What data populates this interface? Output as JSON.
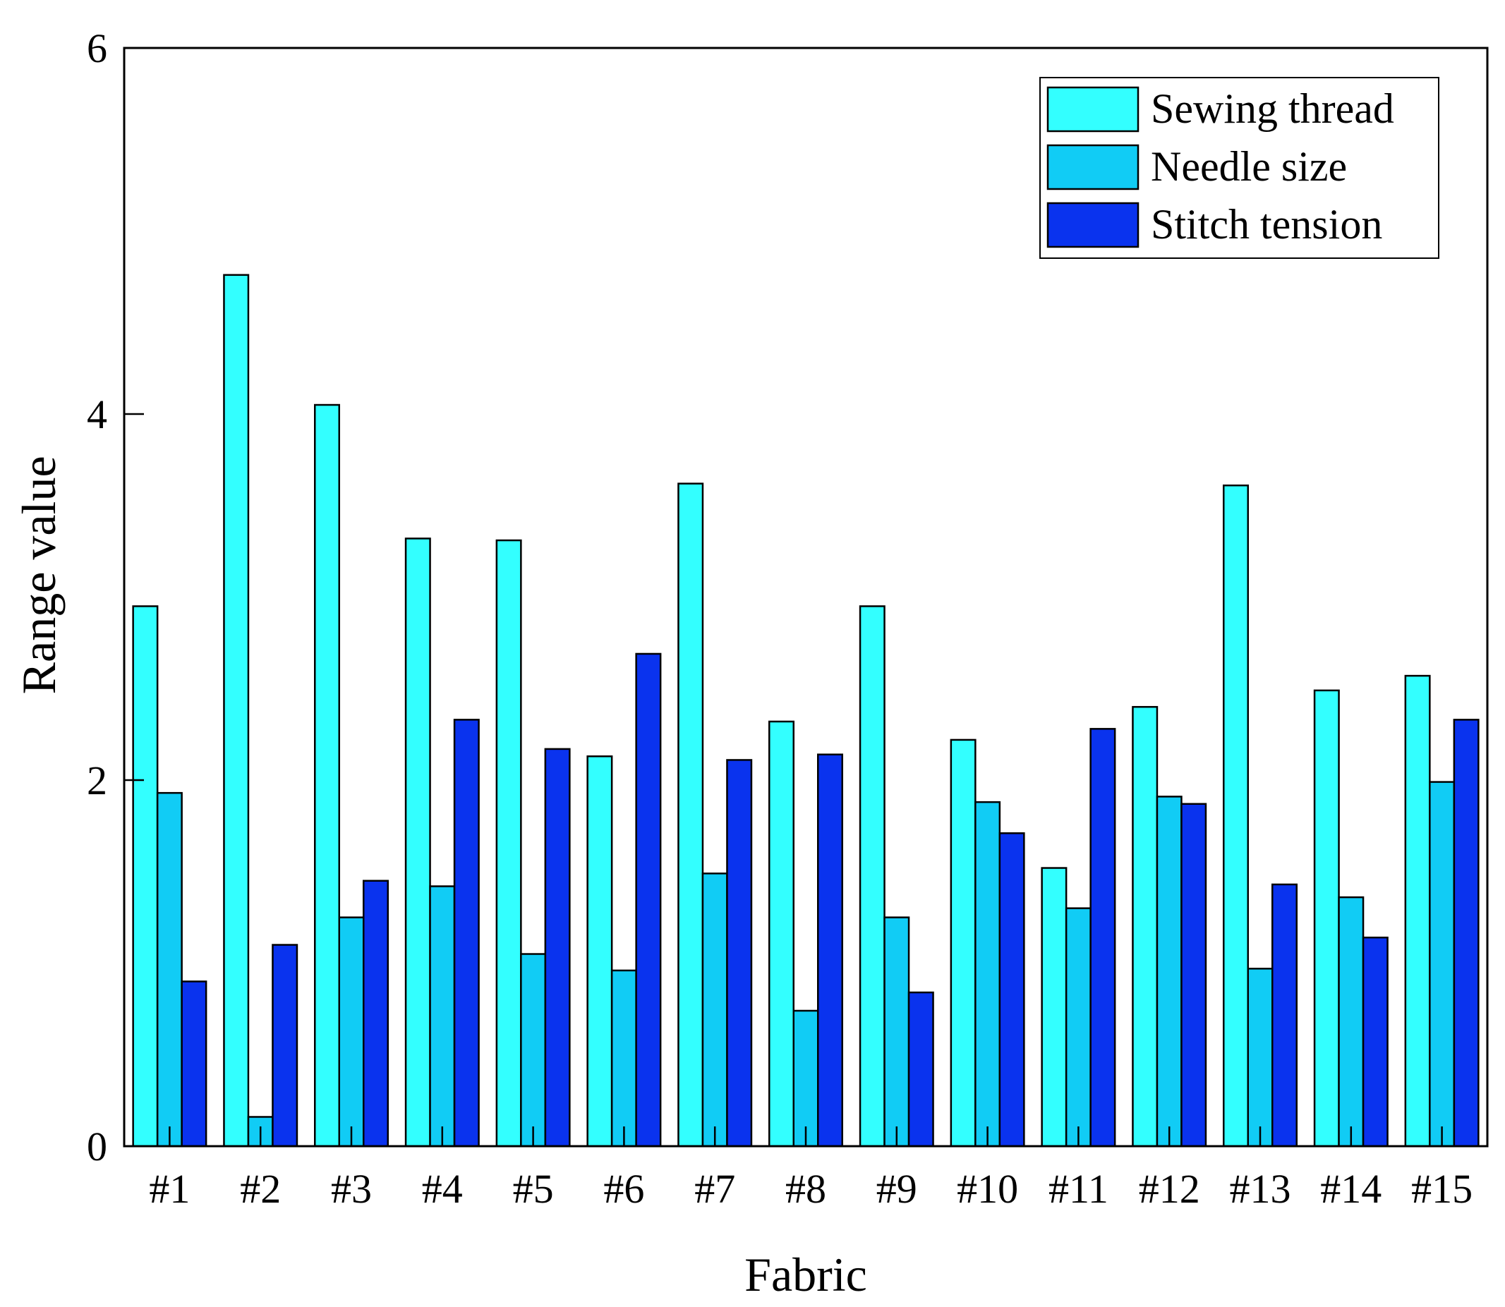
{
  "chart_data": {
    "type": "bar",
    "title": "",
    "xlabel": "Fabric",
    "ylabel": "Range value",
    "ylim": [
      0,
      6
    ],
    "yticks": [
      "0",
      "2",
      "4",
      "6"
    ],
    "categories": [
      "#1",
      "#2",
      "#3",
      "#4",
      "#5",
      "#6",
      "#7",
      "#8",
      "#9",
      "#10",
      "#11",
      "#12",
      "#13",
      "#14",
      "#15"
    ],
    "series": [
      {
        "name": "Sewing thread",
        "color": "#33ffff",
        "values": [
          2.95,
          4.76,
          4.05,
          3.32,
          3.31,
          2.13,
          3.62,
          2.32,
          2.95,
          2.22,
          1.52,
          2.4,
          3.61,
          2.49,
          2.57
        ]
      },
      {
        "name": "Needle size",
        "color": "#11ccf5",
        "values": [
          1.93,
          0.16,
          1.25,
          1.42,
          1.05,
          0.96,
          1.49,
          0.74,
          1.25,
          1.88,
          1.3,
          1.91,
          0.97,
          1.36,
          1.99
        ]
      },
      {
        "name": "Stitch tension",
        "color": "#0a33ee",
        "values": [
          0.9,
          1.1,
          1.45,
          2.33,
          2.17,
          2.69,
          2.11,
          2.14,
          0.84,
          1.71,
          2.28,
          1.87,
          1.43,
          1.14,
          2.33
        ]
      }
    ],
    "legend": {
      "placement": "top-right"
    },
    "grid": false
  }
}
